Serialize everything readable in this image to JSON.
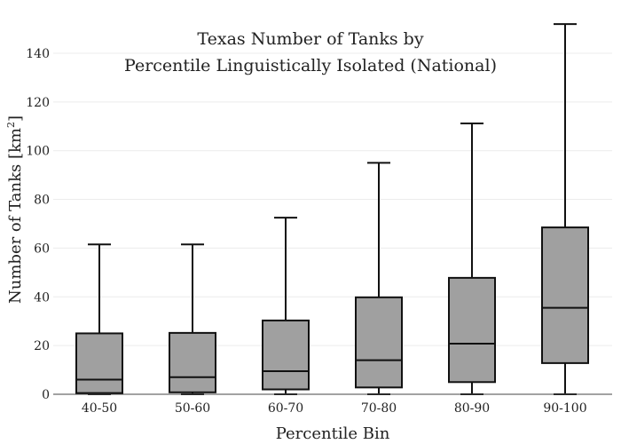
{
  "chart_data": {
    "type": "box",
    "title_lines": [
      "Texas Number of Tanks by",
      "Percentile Linguistically Isolated (National)"
    ],
    "xlabel": "Percentile Bin",
    "ylabel_main": "Number of Tanks  [km",
    "ylabel_sup": "2",
    "ylabel_end": "]",
    "ylim": [
      0,
      155
    ],
    "yticks": [
      0,
      20,
      40,
      60,
      80,
      100,
      120,
      140
    ],
    "grid": true,
    "colors": {
      "box_fill": "#a0a0a0",
      "stroke": "#111111"
    },
    "categories": [
      "40-50",
      "50-60",
      "60-70",
      "70-80",
      "80-90",
      "90-100"
    ],
    "boxes": [
      {
        "category": "40-50",
        "min": 0,
        "q1": 0.5,
        "median": 6,
        "q3": 25,
        "max": 61.5
      },
      {
        "category": "50-60",
        "min": 0,
        "q1": 0.8,
        "median": 7,
        "q3": 25.2,
        "max": 61.5
      },
      {
        "category": "60-70",
        "min": 0,
        "q1": 2,
        "median": 9.5,
        "q3": 30.3,
        "max": 72.5
      },
      {
        "category": "70-80",
        "min": 0,
        "q1": 2.8,
        "median": 14,
        "q3": 39.8,
        "max": 95
      },
      {
        "category": "80-90",
        "min": 0,
        "q1": 5,
        "median": 20.8,
        "q3": 47.8,
        "max": 111.2
      },
      {
        "category": "90-100",
        "min": 0,
        "q1": 12.8,
        "median": 35.5,
        "q3": 68.5,
        "max": 152
      }
    ]
  }
}
